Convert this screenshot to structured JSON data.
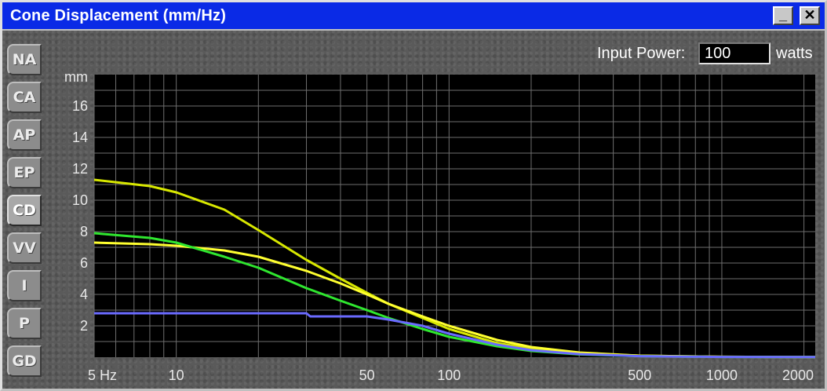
{
  "window": {
    "title": "Cone Displacement (mm/Hz)",
    "minimize_glyph": "_",
    "close_glyph": "✕"
  },
  "sidebar": {
    "tabs": [
      {
        "label": "NA"
      },
      {
        "label": "CA"
      },
      {
        "label": "AP"
      },
      {
        "label": "EP"
      },
      {
        "label": "CD",
        "active": true
      },
      {
        "label": "VV"
      },
      {
        "label": "I"
      },
      {
        "label": "P"
      },
      {
        "label": "GD"
      }
    ]
  },
  "controls": {
    "input_power_label": "Input Power:",
    "input_power_value": "100",
    "input_power_units": "watts"
  },
  "chart_data": {
    "type": "line",
    "ylabel": "mm",
    "x_scale": "log",
    "xlim": [
      5,
      2200
    ],
    "ylim": [
      0,
      18
    ],
    "grid": true,
    "background": "#000000",
    "grid_color": "#6e6e6e",
    "y_ticks": [
      2,
      4,
      6,
      8,
      10,
      12,
      14,
      16
    ],
    "x_tick_labels": [
      {
        "x": 5,
        "label": "5 Hz"
      },
      {
        "x": 10,
        "label": "10"
      },
      {
        "x": 50,
        "label": "50"
      },
      {
        "x": 100,
        "label": "100"
      },
      {
        "x": 500,
        "label": "500"
      },
      {
        "x": 1000,
        "label": "1000"
      },
      {
        "x": 2000,
        "label": "2000"
      }
    ],
    "series": [
      {
        "color": "#d8e800",
        "x": [
          5,
          8,
          10,
          15,
          20,
          30,
          40,
          50,
          60,
          80,
          100,
          150,
          200,
          300,
          500,
          1000,
          2200
        ],
        "y": [
          11.3,
          10.9,
          10.5,
          9.4,
          8.1,
          6.2,
          5.0,
          4.1,
          3.4,
          2.5,
          1.8,
          0.9,
          0.55,
          0.25,
          0.1,
          0.03,
          0.01
        ]
      },
      {
        "color": "#ffff30",
        "x": [
          5,
          8,
          10,
          15,
          20,
          30,
          40,
          50,
          60,
          80,
          100,
          150,
          200,
          300,
          500,
          1000,
          2200
        ],
        "y": [
          7.3,
          7.2,
          7.1,
          6.8,
          6.4,
          5.5,
          4.7,
          4.0,
          3.4,
          2.6,
          2.0,
          1.1,
          0.65,
          0.3,
          0.1,
          0.03,
          0.01
        ]
      },
      {
        "color": "#2fe62f",
        "x": [
          5,
          8,
          10,
          15,
          20,
          30,
          40,
          50,
          60,
          80,
          100,
          150,
          200,
          300,
          500,
          1000,
          2200
        ],
        "y": [
          7.9,
          7.6,
          7.3,
          6.4,
          5.7,
          4.4,
          3.6,
          3.0,
          2.5,
          1.8,
          1.3,
          0.7,
          0.4,
          0.18,
          0.07,
          0.02,
          0.01
        ]
      },
      {
        "color": "#6a6aff",
        "x": [
          5,
          10,
          20,
          30,
          31,
          40,
          50,
          60,
          80,
          100,
          150,
          200,
          300,
          500,
          1000,
          2200
        ],
        "y": [
          2.8,
          2.8,
          2.8,
          2.8,
          2.6,
          2.6,
          2.6,
          2.4,
          2.0,
          1.5,
          0.8,
          0.45,
          0.2,
          0.07,
          0.02,
          0.01
        ]
      }
    ]
  }
}
